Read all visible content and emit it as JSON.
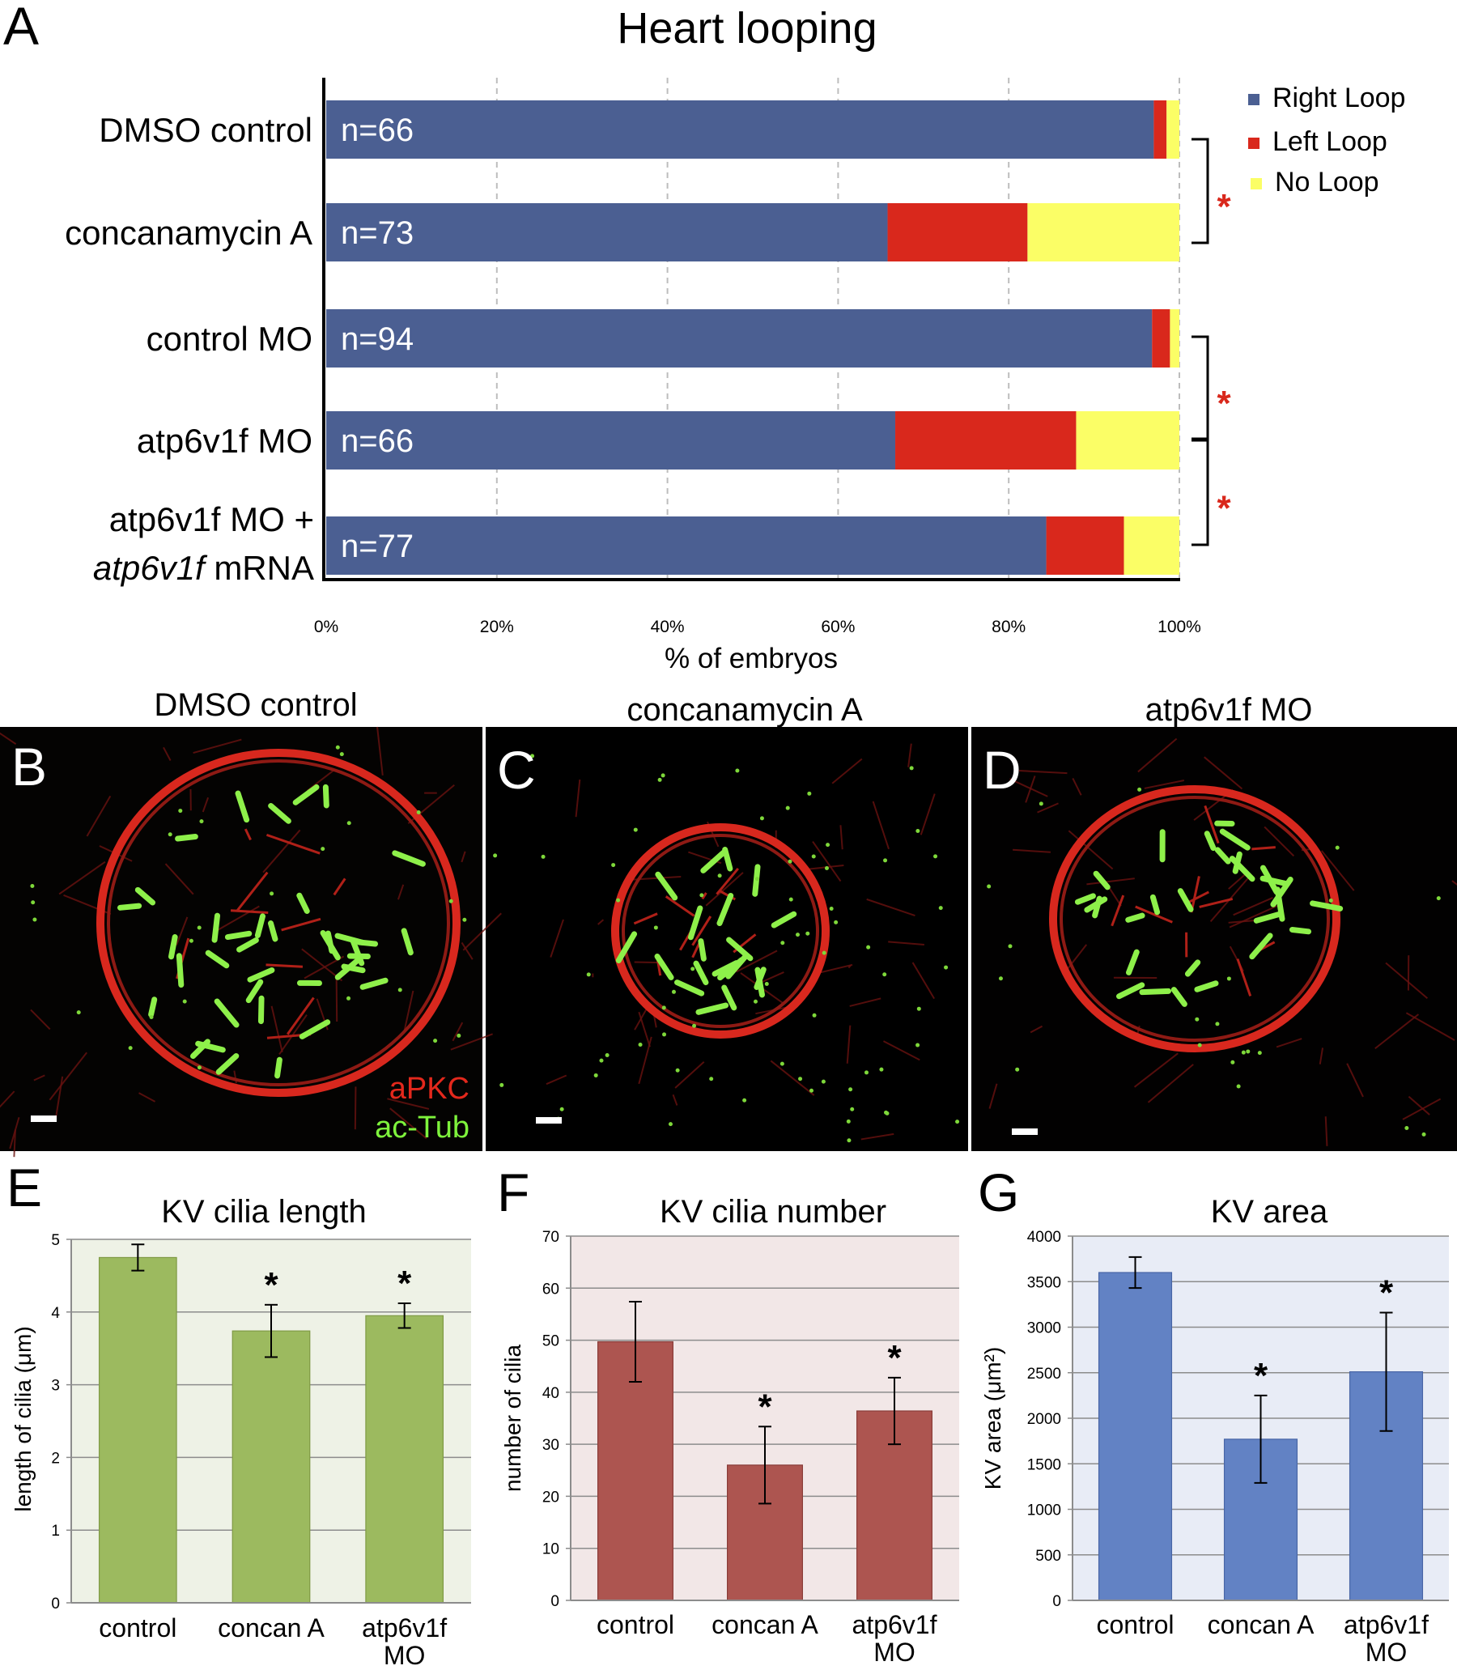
{
  "panel_labels": {
    "a": "A",
    "b": "B",
    "c": "C",
    "d": "D",
    "e": "E",
    "f": "F",
    "g": "G"
  },
  "colors": {
    "right_loop": "#4b5f92",
    "left_loop": "#d9281c",
    "no_loop": "#fbfe66",
    "panel_e_fill": "#9cba5f",
    "panel_e_bg": "#eef2e6",
    "panel_f_fill": "#ad5550",
    "panel_f_bg": "#f2e7e7",
    "panel_g_fill": "#6282c4",
    "panel_g_bg": "#e8ecf6",
    "significance_star": "#d9281c"
  },
  "microscopy": {
    "b": {
      "title": "DMSO control",
      "stain_red": "aPKC",
      "stain_green": "ac-Tub"
    },
    "c": {
      "title": "concanamycin A"
    },
    "d": {
      "title": "atp6v1f MO"
    }
  },
  "chart_data": [
    {
      "panel": "A",
      "type": "bar",
      "orientation": "horizontal",
      "stacked": true,
      "title": "Heart looping",
      "xlabel": "% of embryos",
      "xlim": [
        0,
        100
      ],
      "xticks": [
        "0%",
        "20%",
        "40%",
        "60%",
        "80%",
        "100%"
      ],
      "categories": [
        {
          "line1": "DMSO control",
          "line2": "",
          "line2_italic": "",
          "line2_rest": "",
          "n": "n=66"
        },
        {
          "line1": "concanamycin A",
          "line2": "",
          "line2_italic": "",
          "line2_rest": "",
          "n": "n=73"
        },
        {
          "line1": "control MO",
          "line2": "",
          "line2_italic": "",
          "line2_rest": "",
          "n": "n=94"
        },
        {
          "line1": "atp6v1f MO",
          "line2": "",
          "line2_italic": "",
          "line2_rest": "",
          "n": "n=66"
        },
        {
          "line1": "atp6v1f MO +",
          "line2": "atp6v1f mRNA",
          "line2_italic": "atp6v1f",
          "line2_rest": " mRNA",
          "n": "n=77"
        }
      ],
      "series": [
        {
          "name": "Right Loop",
          "values": [
            97.0,
            65.8,
            96.8,
            66.7,
            84.4
          ]
        },
        {
          "name": "Left Loop",
          "values": [
            1.5,
            16.4,
            2.1,
            21.2,
            9.1
          ]
        },
        {
          "name": "No Loop",
          "values": [
            1.5,
            17.8,
            1.1,
            12.1,
            6.5
          ]
        }
      ],
      "legend": "top-right",
      "significance": [
        {
          "between": [
            0,
            1
          ],
          "label": "*"
        },
        {
          "between": [
            2,
            3
          ],
          "label": "*"
        },
        {
          "between": [
            3,
            4
          ],
          "label": "*"
        }
      ]
    },
    {
      "panel": "E",
      "type": "bar",
      "title": "KV cilia length",
      "ylabel": "length of cilia (μm)",
      "categories": [
        "control",
        "concan A",
        "atp6v1f MO"
      ],
      "values": [
        4.75,
        3.74,
        3.95
      ],
      "errors": [
        0.18,
        0.36,
        0.17
      ],
      "significance": [
        "",
        "*",
        "*"
      ],
      "ylim": [
        0,
        5
      ],
      "yticks": [
        "0",
        "1",
        "2",
        "3",
        "4",
        "5"
      ],
      "grid": true
    },
    {
      "panel": "F",
      "type": "bar",
      "title": "KV cilia number",
      "ylabel": "number of cilia",
      "categories": [
        "control",
        "concan A",
        "atp6v1f MO"
      ],
      "values": [
        49.7,
        26.0,
        36.4
      ],
      "errors": [
        7.7,
        7.4,
        6.4
      ],
      "significance": [
        "",
        "*",
        "*"
      ],
      "ylim": [
        0,
        70
      ],
      "yticks": [
        "0",
        "10",
        "20",
        "30",
        "40",
        "50",
        "60",
        "70"
      ],
      "grid": true
    },
    {
      "panel": "G",
      "type": "bar",
      "title": "KV area",
      "ylabel": "KV area (μm²)",
      "categories": [
        "control",
        "concan A",
        "atp6v1f MO"
      ],
      "values": [
        3600,
        1770,
        2510
      ],
      "errors": [
        170,
        480,
        650
      ],
      "significance": [
        "",
        "*",
        "*"
      ],
      "ylim": [
        0,
        4000
      ],
      "yticks": [
        "0",
        "500",
        "1000",
        "1500",
        "2000",
        "2500",
        "3000",
        "3500",
        "4000"
      ],
      "grid": true
    }
  ]
}
